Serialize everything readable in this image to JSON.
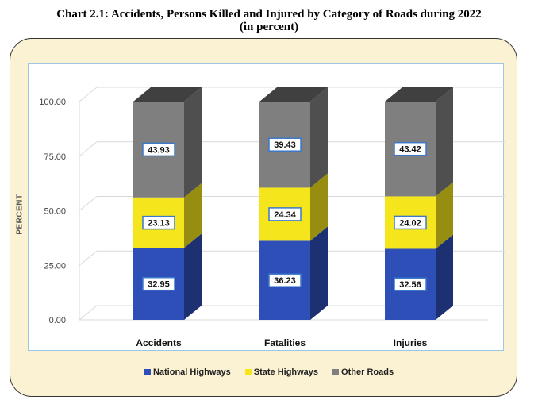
{
  "title_line1": "Chart 2.1: Accidents, Persons Killed and Injured by Category of Roads during 2022",
  "title_line2": "(in percent)",
  "chart_data": {
    "type": "bar",
    "stacked": true,
    "categories": [
      "Accidents",
      "Fatalities",
      "Injuries"
    ],
    "series": [
      {
        "name": "National Highways",
        "values": [
          32.95,
          36.23,
          32.56
        ],
        "color": "#2e4fb8"
      },
      {
        "name": "State Highways",
        "values": [
          23.13,
          24.34,
          24.02
        ],
        "color": "#f4e51c"
      },
      {
        "name": "Other Roads",
        "values": [
          43.93,
          39.43,
          43.42
        ],
        "color": "#7f7f7f"
      }
    ],
    "ylabel": "PERCENT",
    "ylim": [
      0,
      100
    ],
    "yticks": [
      "0.00",
      "25.00",
      "50.00",
      "75.00",
      "100.00"
    ],
    "legend_position": "bottom",
    "grid": true
  }
}
